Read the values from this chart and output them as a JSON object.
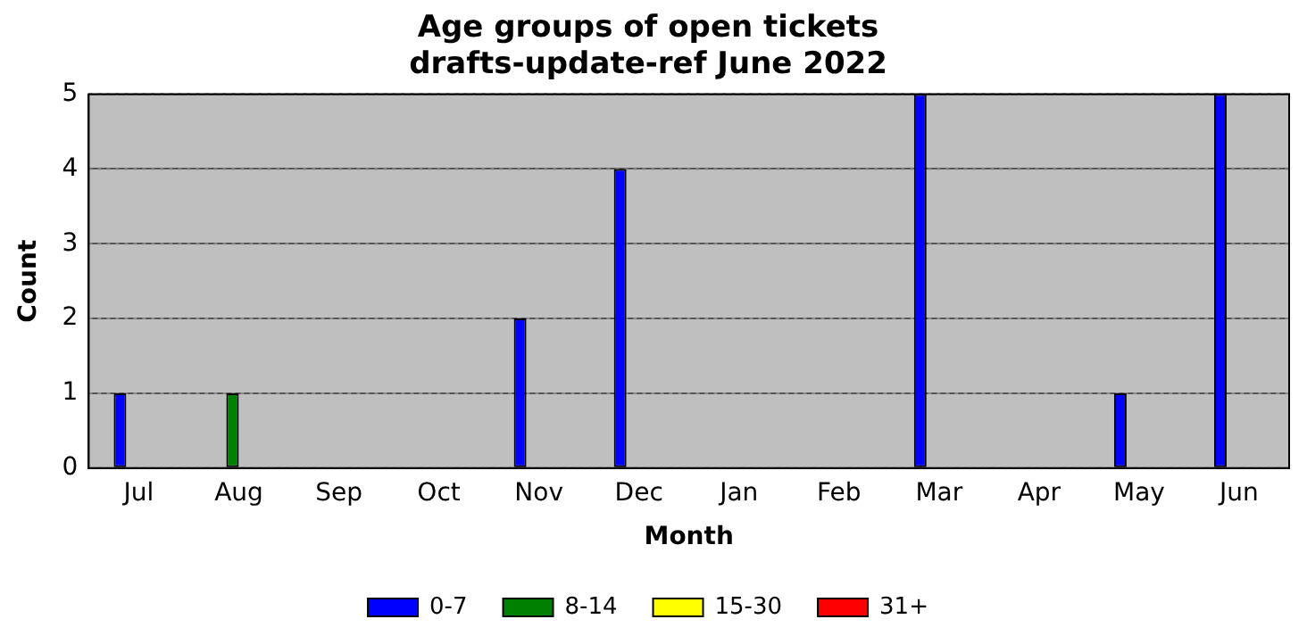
{
  "chart_data": {
    "type": "bar",
    "title": "Age groups of open tickets\ndrafts-update-ref June 2022",
    "xlabel": "Month",
    "ylabel": "Count",
    "categories": [
      "Jul",
      "Aug",
      "Sep",
      "Oct",
      "Nov",
      "Dec",
      "Jan",
      "Feb",
      "Mar",
      "Apr",
      "May",
      "Jun"
    ],
    "series": [
      {
        "name": "0-7",
        "color": "#0000ff",
        "values": [
          1,
          0,
          0,
          0,
          2,
          4,
          0,
          0,
          5,
          0,
          1,
          5
        ]
      },
      {
        "name": "8-14",
        "color": "#008000",
        "values": [
          0,
          1,
          0,
          0,
          0,
          0,
          0,
          0,
          0,
          0,
          0,
          0
        ]
      },
      {
        "name": "15-30",
        "color": "#ffff00",
        "values": [
          0,
          0,
          0,
          0,
          0,
          0,
          0,
          0,
          0,
          0,
          0,
          0
        ]
      },
      {
        "name": "31+",
        "color": "#ff0000",
        "values": [
          0,
          0,
          0,
          0,
          0,
          0,
          0,
          0,
          0,
          0,
          0,
          0
        ]
      }
    ],
    "ylim": [
      0,
      5
    ],
    "yticks": [
      0,
      1,
      2,
      3,
      4,
      5
    ],
    "grid": "y",
    "legend": "bottom"
  }
}
